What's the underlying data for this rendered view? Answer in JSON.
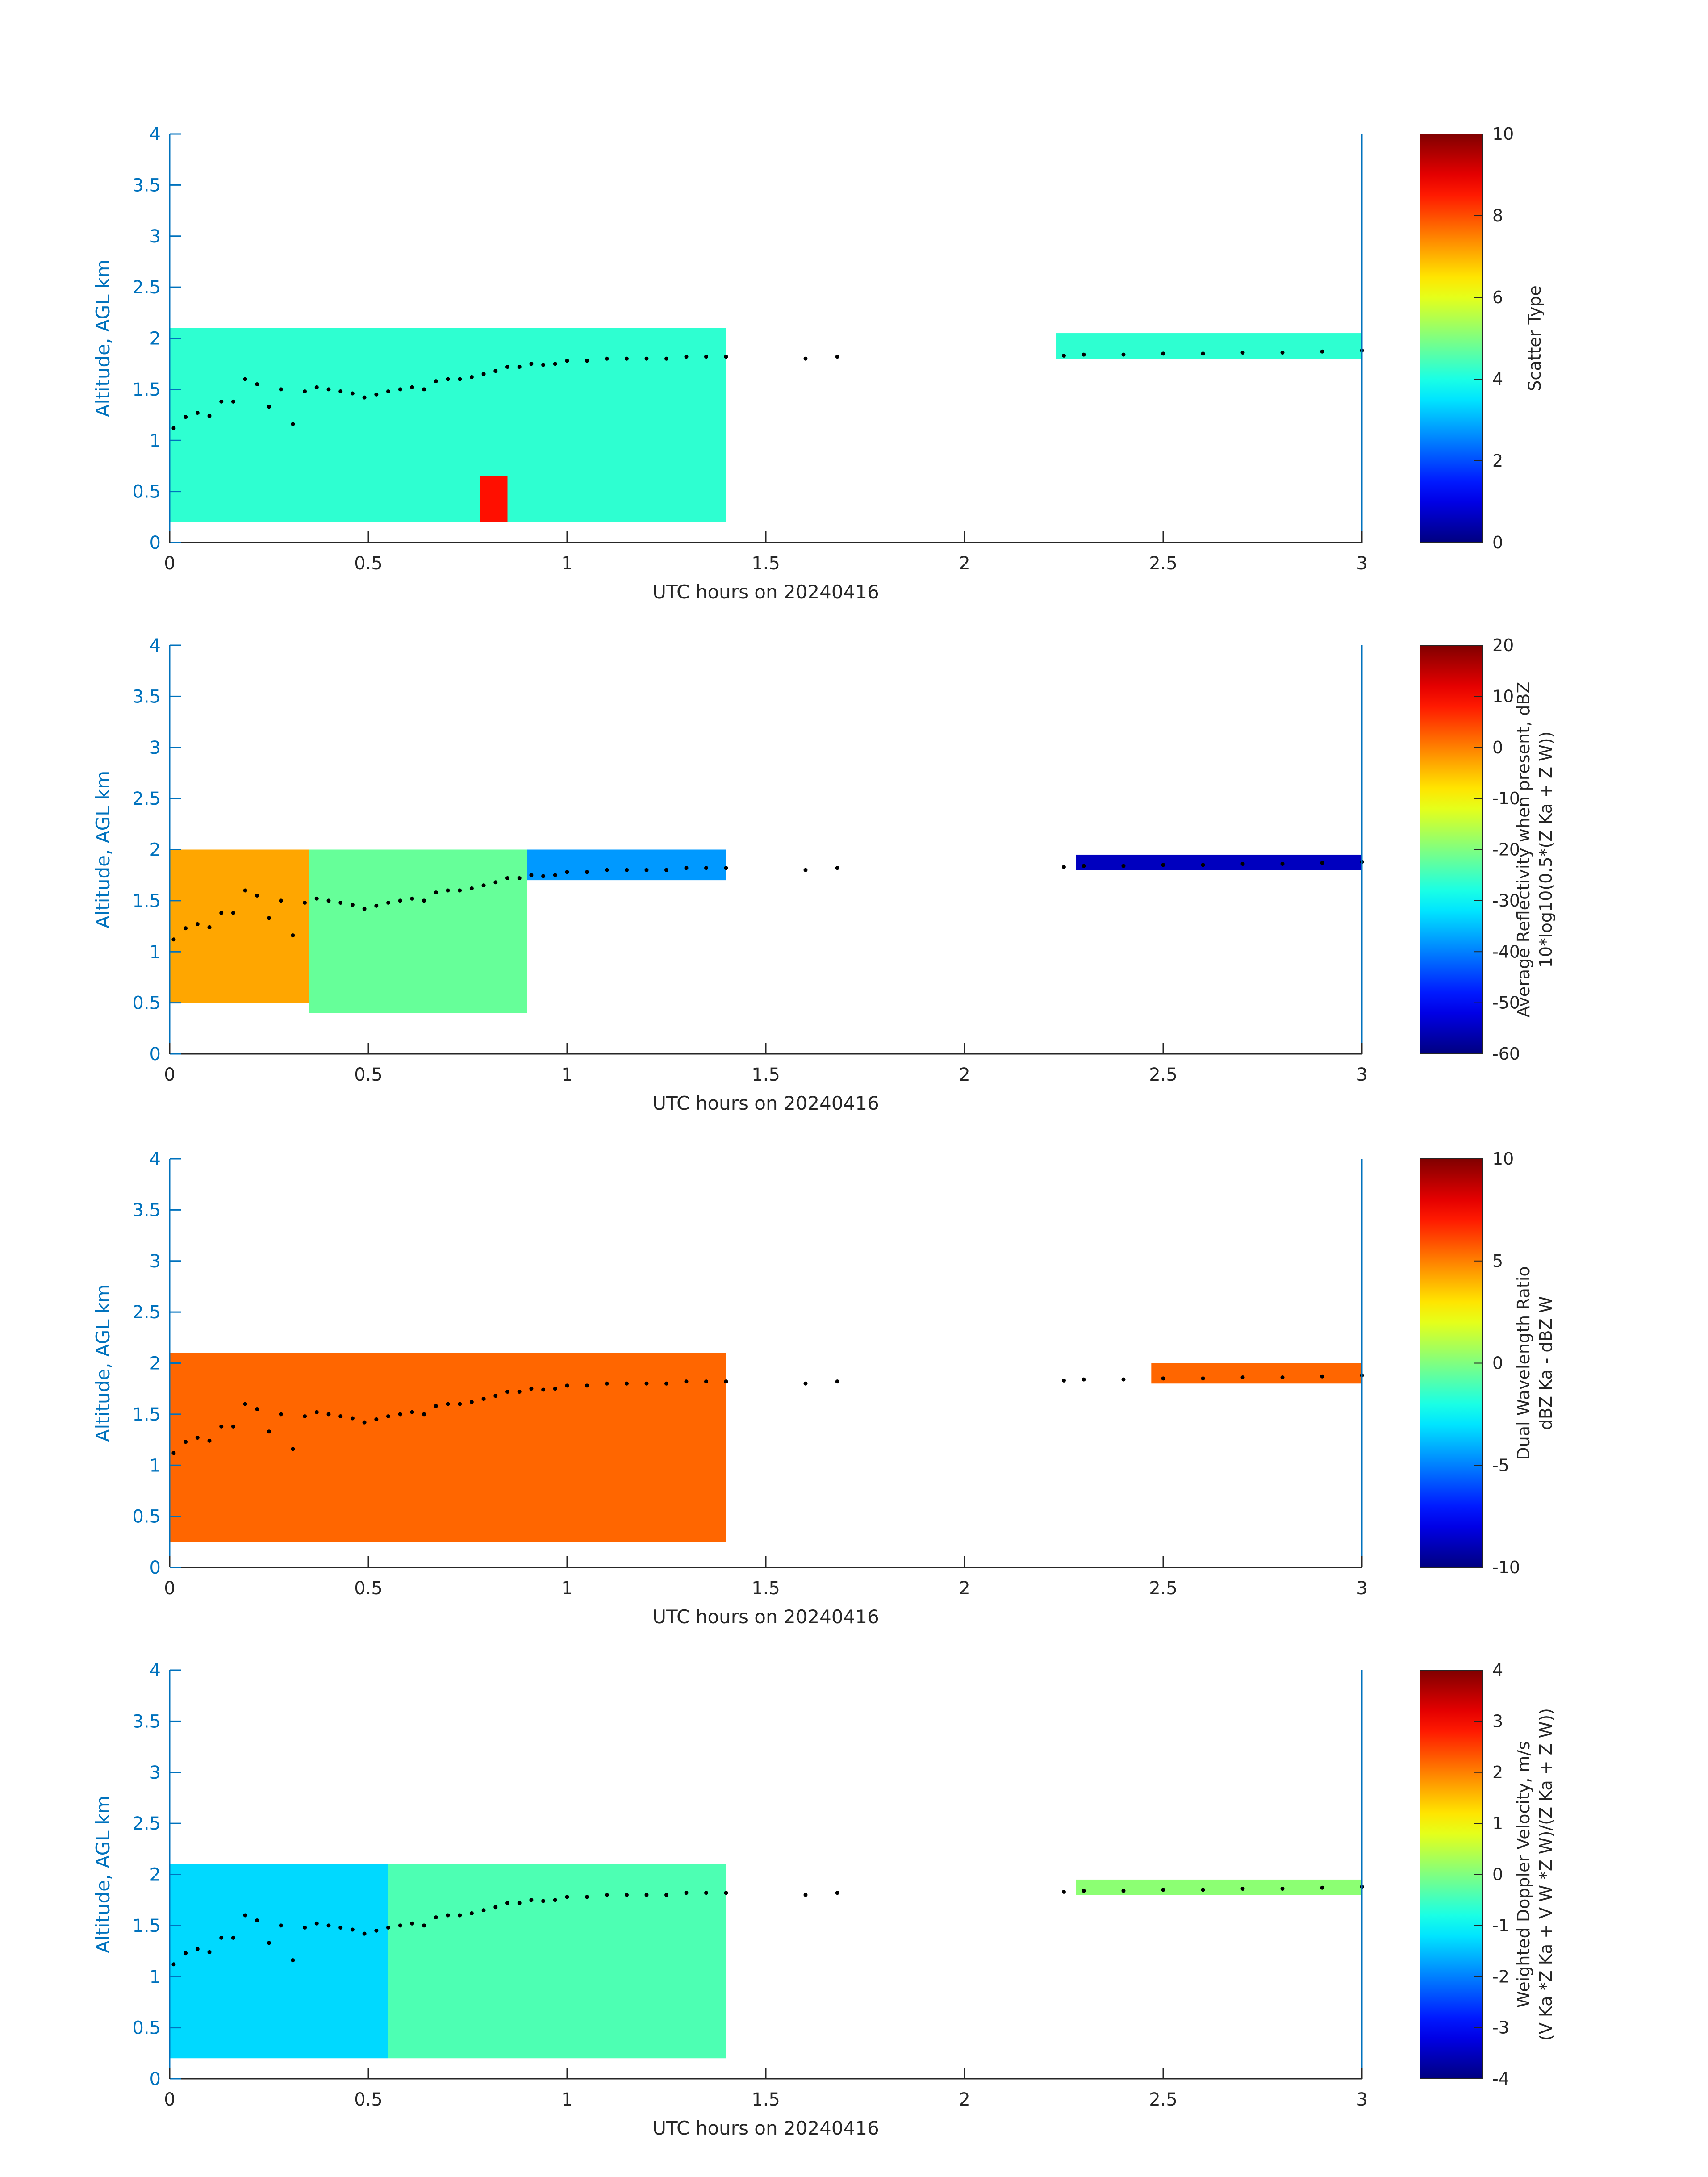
{
  "chart_data": [
    {
      "type": "heatmap",
      "xlabel": "UTC hours on 20240416",
      "ylabel": "Altitude, AGL km",
      "xlim": [
        0,
        3
      ],
      "ylim": [
        0,
        4
      ],
      "xticks": [
        "0",
        "0.5",
        "1",
        "1.5",
        "2",
        "2.5",
        "3"
      ],
      "yticks": [
        "0",
        "0.5",
        "1",
        "1.5",
        "2",
        "2.5",
        "3",
        "3.5",
        "4"
      ],
      "colorbar": {
        "label_lines": [
          "Scatter Type"
        ],
        "range": [
          0,
          10
        ],
        "ticks": [
          "0",
          "2",
          "4",
          "6",
          "8",
          "10"
        ]
      },
      "colormap": "jet",
      "description_regions": [
        {
          "x": [
            0.0,
            1.4
          ],
          "y": [
            0.2,
            2.1
          ],
          "value": 4.2
        },
        {
          "x": [
            2.23,
            3.0
          ],
          "y": [
            1.8,
            2.05
          ],
          "value": 4.2
        },
        {
          "x": [
            0.78,
            0.85
          ],
          "y": [
            0.2,
            0.65
          ],
          "value": 8.6
        }
      ]
    },
    {
      "type": "heatmap",
      "xlabel": "UTC hours on 20240416",
      "ylabel": "Altitude, AGL km",
      "xlim": [
        0,
        3
      ],
      "ylim": [
        0,
        4
      ],
      "xticks": [
        "0",
        "0.5",
        "1",
        "1.5",
        "2",
        "2.5",
        "3"
      ],
      "yticks": [
        "0",
        "0.5",
        "1",
        "1.5",
        "2",
        "2.5",
        "3",
        "3.5",
        "4"
      ],
      "colorbar": {
        "label_lines": [
          "Average Reflectivity when present, dBZ",
          "10*log10(0.5*(Z Ka + Z W))"
        ],
        "range": [
          -60,
          20
        ],
        "ticks": [
          "-60",
          "-50",
          "-40",
          "-30",
          "-20",
          "-10",
          "0",
          "10",
          "20"
        ]
      },
      "colormap": "jet",
      "description_regions": [
        {
          "x": [
            0.0,
            0.35
          ],
          "y": [
            0.5,
            2.0
          ],
          "value": -3
        },
        {
          "x": [
            0.35,
            0.9
          ],
          "y": [
            0.4,
            2.0
          ],
          "value": -22
        },
        {
          "x": [
            0.9,
            1.4
          ],
          "y": [
            1.7,
            2.0
          ],
          "value": -38
        },
        {
          "x": [
            2.28,
            3.0
          ],
          "y": [
            1.8,
            1.95
          ],
          "value": -55
        }
      ]
    },
    {
      "type": "heatmap",
      "xlabel": "UTC hours on 20240416",
      "ylabel": "Altitude, AGL km",
      "xlim": [
        0,
        3
      ],
      "ylim": [
        0,
        4
      ],
      "xticks": [
        "0",
        "0.5",
        "1",
        "1.5",
        "2",
        "2.5",
        "3"
      ],
      "yticks": [
        "0",
        "0.5",
        "1",
        "1.5",
        "2",
        "2.5",
        "3",
        "3.5",
        "4"
      ],
      "colorbar": {
        "label_lines": [
          "Dual Wavelength Ratio",
          "dBZ Ka - dBZ W"
        ],
        "range": [
          -10,
          10
        ],
        "ticks": [
          "-10",
          "-5",
          "0",
          "5",
          "10"
        ]
      },
      "colormap": "jet",
      "description_regions": [
        {
          "x": [
            0.0,
            1.4
          ],
          "y": [
            0.25,
            2.1
          ],
          "value": 5.5
        },
        {
          "x": [
            2.47,
            3.0
          ],
          "y": [
            1.8,
            2.0
          ],
          "value": 5.5
        }
      ]
    },
    {
      "type": "heatmap",
      "xlabel": "UTC hours on 20240416",
      "ylabel": "Altitude, AGL km",
      "xlim": [
        0,
        3
      ],
      "ylim": [
        0,
        4
      ],
      "xticks": [
        "0",
        "0.5",
        "1",
        "1.5",
        "2",
        "2.5",
        "3"
      ],
      "yticks": [
        "0",
        "0.5",
        "1",
        "1.5",
        "2",
        "2.5",
        "3",
        "3.5",
        "4"
      ],
      "colorbar": {
        "label_lines": [
          "Weighted Doppler Velocity, m/s",
          "(V Ka *Z Ka + V W *Z W)/(Z Ka + Z W))"
        ],
        "range": [
          -4,
          4
        ],
        "ticks": [
          "-4",
          "-3",
          "-2",
          "-1",
          "0",
          "1",
          "2",
          "3",
          "4"
        ]
      },
      "colormap": "jet",
      "description_regions": [
        {
          "x": [
            0.0,
            0.55
          ],
          "y": [
            0.2,
            2.1
          ],
          "value": -1.3
        },
        {
          "x": [
            0.55,
            1.4
          ],
          "y": [
            0.2,
            2.1
          ],
          "value": -0.4
        },
        {
          "x": [
            2.28,
            3.0
          ],
          "y": [
            1.8,
            1.95
          ],
          "value": 0.1
        }
      ]
    }
  ],
  "cloud_top_overlay": {
    "x": [
      0.01,
      0.04,
      0.07,
      0.1,
      0.13,
      0.16,
      0.19,
      0.22,
      0.25,
      0.28,
      0.31,
      0.34,
      0.37,
      0.4,
      0.43,
      0.46,
      0.49,
      0.52,
      0.55,
      0.58,
      0.61,
      0.64,
      0.67,
      0.7,
      0.73,
      0.76,
      0.79,
      0.82,
      0.85,
      0.88,
      0.91,
      0.94,
      0.97,
      1.0,
      1.05,
      1.1,
      1.15,
      1.2,
      1.25,
      1.3,
      1.35,
      1.4,
      1.6,
      1.68,
      2.25,
      2.3,
      2.4,
      2.5,
      2.6,
      2.7,
      2.8,
      2.9,
      3.0
    ],
    "y": [
      1.12,
      1.23,
      1.27,
      1.24,
      1.38,
      1.38,
      1.6,
      1.55,
      1.33,
      1.5,
      1.16,
      1.48,
      1.52,
      1.5,
      1.48,
      1.46,
      1.42,
      1.45,
      1.48,
      1.5,
      1.52,
      1.5,
      1.58,
      1.6,
      1.6,
      1.62,
      1.65,
      1.68,
      1.72,
      1.72,
      1.75,
      1.74,
      1.75,
      1.78,
      1.78,
      1.8,
      1.8,
      1.8,
      1.8,
      1.82,
      1.82,
      1.82,
      1.8,
      1.82,
      1.83,
      1.84,
      1.84,
      1.85,
      1.85,
      1.86,
      1.86,
      1.87,
      1.88
    ]
  }
}
